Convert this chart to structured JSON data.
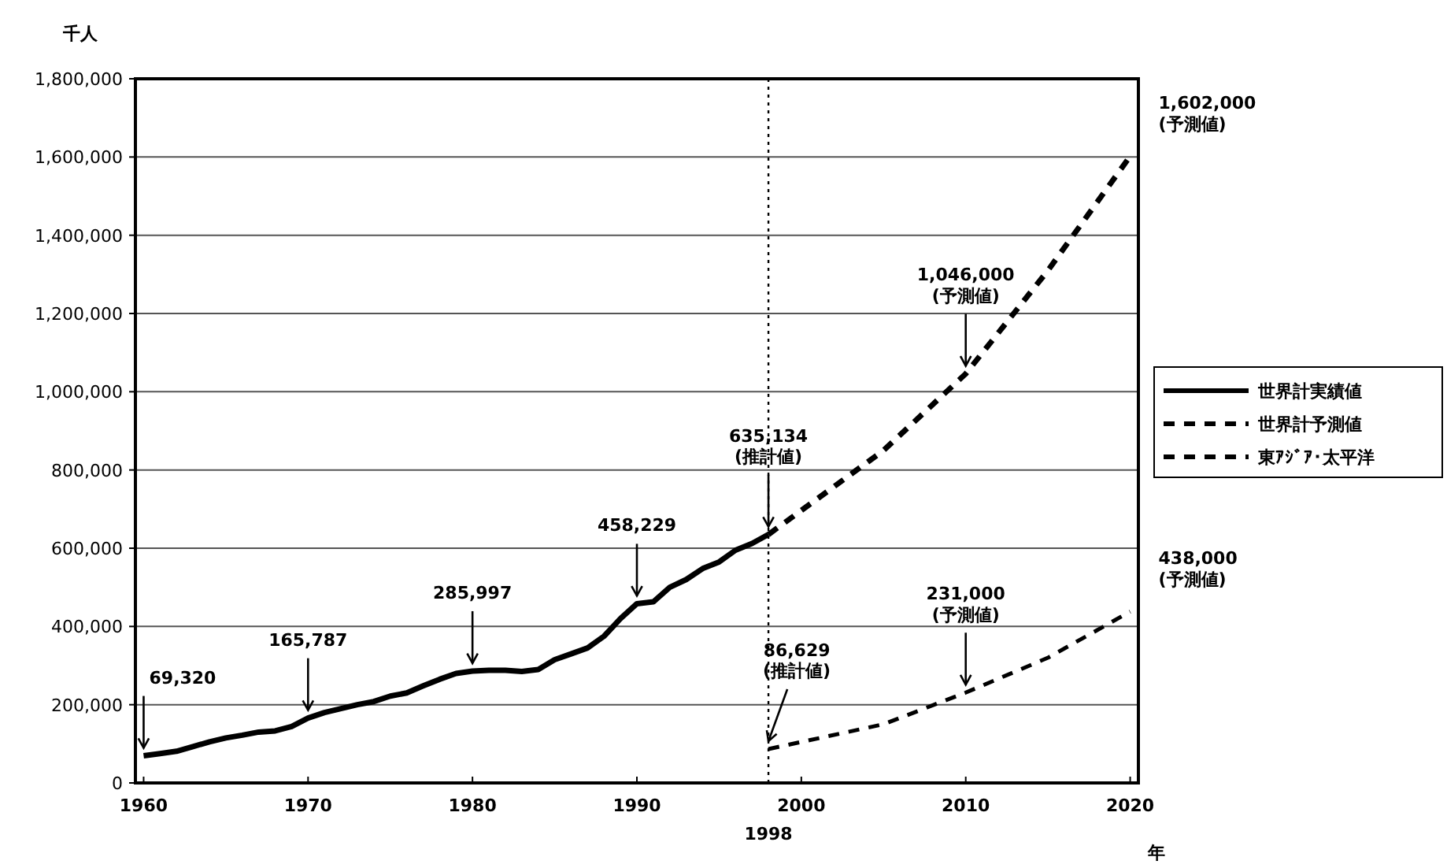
{
  "chart_data": {
    "type": "line",
    "ylabel": "千人",
    "xlabel": "年",
    "xlim": [
      1959.5,
      2020.5
    ],
    "ylim": [
      0,
      1800000
    ],
    "xticks": [
      1960,
      1970,
      1980,
      1990,
      2000,
      2010,
      2020
    ],
    "yticks": [
      {
        "value": 0,
        "label": "0"
      },
      {
        "value": 200000,
        "label": "200,000"
      },
      {
        "value": 400000,
        "label": "400,000"
      },
      {
        "value": 600000,
        "label": "600,000"
      },
      {
        "value": 800000,
        "label": "800,000"
      },
      {
        "value": 1000000,
        "label": "1,000,000"
      },
      {
        "value": 1200000,
        "label": "1,200,000"
      },
      {
        "value": 1400000,
        "label": "1,400,000"
      },
      {
        "value": 1600000,
        "label": "1,600,000"
      },
      {
        "value": 1800000,
        "label": "1,800,000"
      }
    ],
    "grid": "y",
    "legend": "right",
    "marker": "none",
    "series": [
      {
        "name": "世界計実績値",
        "color": "#000000",
        "line_style": "solid",
        "x": [
          1960,
          1961,
          1962,
          1963,
          1964,
          1965,
          1966,
          1967,
          1968,
          1969,
          1970,
          1971,
          1972,
          1973,
          1974,
          1975,
          1976,
          1977,
          1978,
          1979,
          1980,
          1981,
          1982,
          1983,
          1984,
          1985,
          1986,
          1987,
          1988,
          1989,
          1990,
          1991,
          1992,
          1993,
          1994,
          1995,
          1996,
          1997,
          1998
        ],
        "values": [
          69320,
          75000,
          81000,
          93000,
          105000,
          115000,
          122000,
          130000,
          133000,
          144000,
          165787,
          180000,
          190000,
          200000,
          208000,
          222000,
          230000,
          248000,
          265000,
          280000,
          285997,
          288000,
          288000,
          285000,
          290000,
          315000,
          330000,
          345000,
          375000,
          420000,
          458229,
          463000,
          500000,
          520000,
          548000,
          565000,
          595000,
          612000,
          635134
        ]
      },
      {
        "name": "世界計予測値",
        "color": "#000000",
        "line_style": "dashed",
        "x": [
          1998,
          2005,
          2010,
          2015,
          2020
        ],
        "values": [
          635134,
          850000,
          1046000,
          1310000,
          1602000
        ]
      },
      {
        "name": "東ｱｼﾞｱ･太平洋",
        "color": "#000000",
        "line_style": "dashed",
        "x": [
          1998,
          2005,
          2010,
          2015,
          2020
        ],
        "values": [
          86629,
          150000,
          231000,
          320000,
          438000
        ]
      }
    ],
    "ref_lines": [
      {
        "axis": "x",
        "value": 1998,
        "label": "1998",
        "line_style": "dotted",
        "color": "#000000"
      }
    ],
    "annotations": [
      {
        "text": "69,320",
        "x": 1960,
        "y": 69320
      },
      {
        "text": "165,787",
        "x": 1970,
        "y": 165787
      },
      {
        "text": "285,997",
        "x": 1980,
        "y": 285997
      },
      {
        "text": "458,229",
        "x": 1990,
        "y": 458229
      },
      {
        "text": "635,134\n(推計値)",
        "x": 1998,
        "y": 635134
      },
      {
        "text": "1,046,000\n(予測値)",
        "x": 2010,
        "y": 1046000
      },
      {
        "text": "1,602,000\n(予測値)",
        "x": 2020,
        "y": 1602000
      },
      {
        "text": "86,629\n(推計値)",
        "x": 1998,
        "y": 86629
      },
      {
        "text": "231,000\n(予測値)",
        "x": 2010,
        "y": 231000
      },
      {
        "text": "438,000\n(予測値)",
        "x": 2020,
        "y": 438000
      }
    ]
  }
}
